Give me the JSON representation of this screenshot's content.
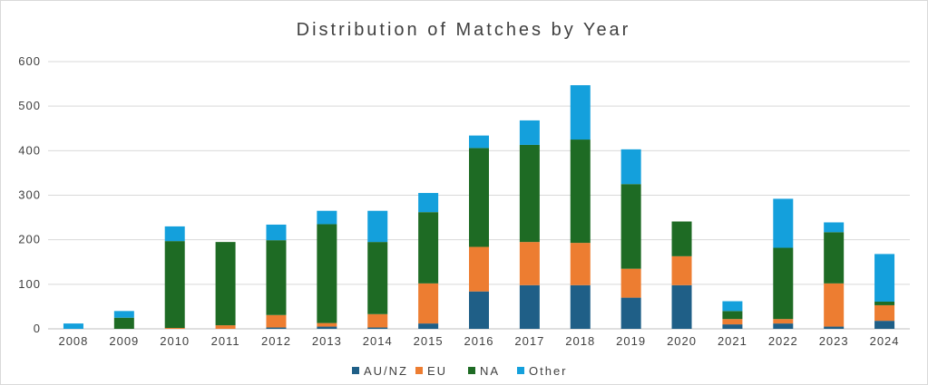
{
  "chart_data": {
    "type": "bar",
    "stacked": true,
    "title": "Distribution of Matches by Year",
    "xlabel": "",
    "ylabel": "",
    "ylim": [
      0,
      600
    ],
    "yticks": [
      0,
      100,
      200,
      300,
      400,
      500,
      600
    ],
    "grid": true,
    "legend_position": "bottom",
    "categories": [
      "2008",
      "2009",
      "2010",
      "2011",
      "2012",
      "2013",
      "2014",
      "2015",
      "2016",
      "2017",
      "2018",
      "2019",
      "2020",
      "2021",
      "2022",
      "2023",
      "2024"
    ],
    "series": [
      {
        "name": "AU/NZ",
        "color": "#1f5f87",
        "values": [
          0,
          0,
          0,
          0,
          3,
          5,
          3,
          12,
          84,
          98,
          98,
          70,
          98,
          10,
          12,
          5,
          18
        ]
      },
      {
        "name": "EU",
        "color": "#ed7d31",
        "values": [
          0,
          0,
          2,
          8,
          28,
          8,
          30,
          90,
          100,
          97,
          95,
          65,
          65,
          12,
          10,
          97,
          35
        ]
      },
      {
        "name": "NA",
        "color": "#1e6b24",
        "values": [
          0,
          25,
          195,
          187,
          168,
          222,
          162,
          160,
          222,
          218,
          232,
          190,
          78,
          18,
          160,
          115,
          8
        ]
      },
      {
        "name": "Other",
        "color": "#14a0dc",
        "values": [
          12,
          15,
          33,
          0,
          35,
          30,
          70,
          43,
          28,
          55,
          122,
          78,
          0,
          22,
          110,
          22,
          107
        ]
      }
    ]
  }
}
